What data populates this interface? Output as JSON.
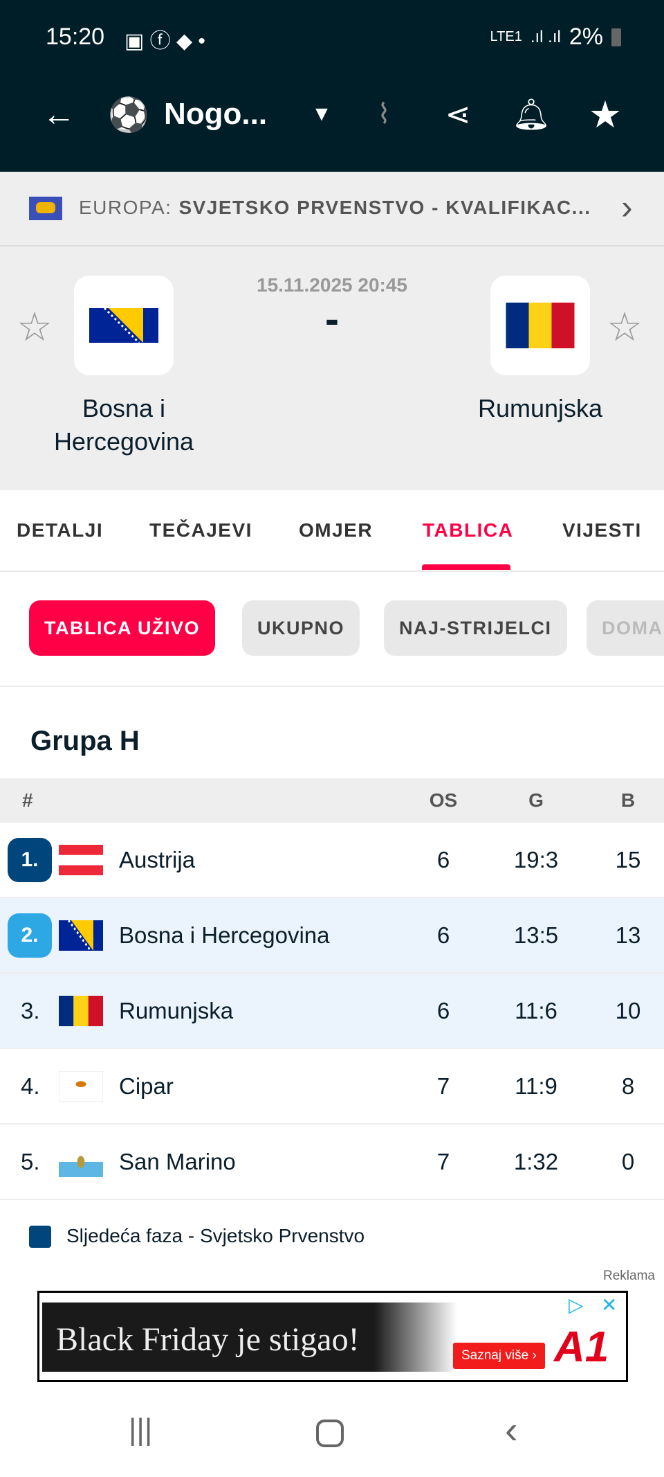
{
  "status_bar": {
    "time": "15:20",
    "battery": "2%",
    "network": "LTE1"
  },
  "app_bar": {
    "title": "Nogo...",
    "sport_icon": "soccer-ball-icon"
  },
  "breadcrumb": {
    "region": "EUROPA:",
    "competition": "SVJETSKO PRVENSTVO - KVALIFIKAC..."
  },
  "match": {
    "datetime": "15.11.2025 20:45",
    "score": "-",
    "home": "Bosna i Hercegovina",
    "away": "Rumunjska"
  },
  "tabs": [
    {
      "label": "DETALJI"
    },
    {
      "label": "TEČAJEVI"
    },
    {
      "label": "OMJER"
    },
    {
      "label": "TABLICA",
      "active": true
    },
    {
      "label": "VIJESTI"
    }
  ],
  "chips": [
    {
      "label": "TABLICA UŽIVO",
      "active": true
    },
    {
      "label": "UKUPNO"
    },
    {
      "label": "NAJ-STRIJELCI"
    },
    {
      "label": "DOMA"
    }
  ],
  "group": {
    "title": "Grupa H",
    "headers": {
      "rank": "#",
      "played": "OS",
      "goals": "G",
      "points": "B"
    },
    "rows": [
      {
        "rank": "1.",
        "team": "Austrija",
        "played": "6",
        "goals": "19:3",
        "points": "15"
      },
      {
        "rank": "2.",
        "team": "Bosna i Hercegovina",
        "played": "6",
        "goals": "13:5",
        "points": "13"
      },
      {
        "rank": "3.",
        "team": "Rumunjska",
        "played": "6",
        "goals": "11:6",
        "points": "10"
      },
      {
        "rank": "4.",
        "team": "Cipar",
        "played": "7",
        "goals": "11:9",
        "points": "8"
      },
      {
        "rank": "5.",
        "team": "San Marino",
        "played": "7",
        "goals": "1:32",
        "points": "0"
      }
    ]
  },
  "legend": {
    "label": "Sljedeća faza - Svjetsko Prvenstvo",
    "color": "#00457c"
  },
  "ad": {
    "label": "Reklama",
    "headline": "Black Friday je stigao!",
    "cta": "Saznaj više ›",
    "brand": "A1"
  },
  "colors": {
    "accent": "#ff0046",
    "header_bg": "#001e28",
    "rank1": "#00457c",
    "rank2": "#2ea8e5",
    "highlight_row": "#ebf4fd"
  }
}
